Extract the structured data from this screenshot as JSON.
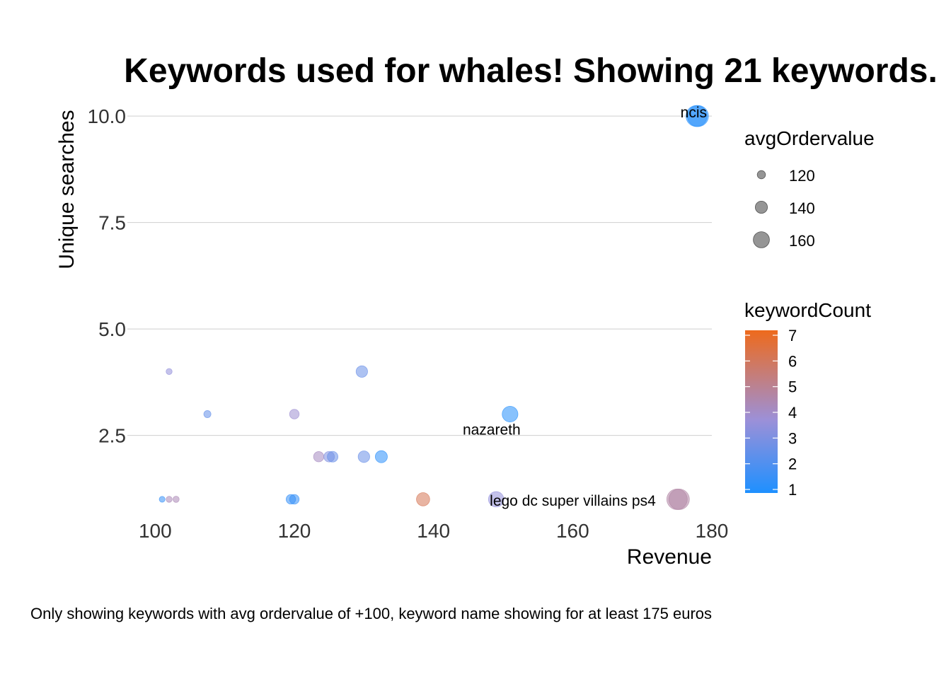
{
  "chart_data": {
    "type": "scatter",
    "title": "Keywords used for whales! Showing 21 keywords.",
    "xlabel": "Revenue",
    "ylabel": "Unique searches",
    "caption": "Only showing keywords with avg ordervalue of +100, keyword name showing for at least 175 euros",
    "xlim": [
      96,
      180
    ],
    "ylim": [
      0.6,
      10.4
    ],
    "x_ticks": [
      100,
      120,
      140,
      160,
      180
    ],
    "y_ticks": [
      2.5,
      5.0,
      7.5,
      10.0
    ],
    "y_tick_labels": [
      "2.5",
      "5.0",
      "7.5",
      "10.0"
    ],
    "grid": "horizontal-major",
    "legend_placement": "right",
    "size_legend": {
      "title": "avgOrdervalue",
      "entries": [
        {
          "label": "120",
          "value": 120
        },
        {
          "label": "140",
          "value": 140
        },
        {
          "label": "160",
          "value": 160
        }
      ]
    },
    "color_legend": {
      "title": "keywordCount",
      "min": 1,
      "max": 7,
      "ticks": [
        "1",
        "2",
        "3",
        "4",
        "5",
        "6",
        "7"
      ],
      "low_color": "#1e90ff",
      "mid_color": "#9c90d8",
      "high_color": "#ee6a1c"
    },
    "points": [
      {
        "x": 101,
        "y": 1,
        "count": 1.5,
        "size": 101
      },
      {
        "x": 102,
        "y": 1,
        "count": 4.3,
        "size": 102
      },
      {
        "x": 103,
        "y": 1,
        "count": 4.3,
        "size": 103
      },
      {
        "x": 102,
        "y": 4,
        "count": 3.5,
        "size": 102
      },
      {
        "x": 107.5,
        "y": 3,
        "count": 2.5,
        "size": 107.5
      },
      {
        "x": 119.5,
        "y": 1,
        "count": 1.5,
        "size": 119.5
      },
      {
        "x": 120,
        "y": 1,
        "count": 1.5,
        "size": 120
      },
      {
        "x": 120,
        "y": 3,
        "count": 3.8,
        "size": 120
      },
      {
        "x": 123.5,
        "y": 2,
        "count": 4.1,
        "size": 123.5
      },
      {
        "x": 125,
        "y": 2,
        "count": 3.1,
        "size": 125
      },
      {
        "x": 125.5,
        "y": 2,
        "count": 2.6,
        "size": 125.5
      },
      {
        "x": 129.7,
        "y": 4,
        "count": 2.6,
        "size": 129.7
      },
      {
        "x": 130,
        "y": 2,
        "count": 2.6,
        "size": 130
      },
      {
        "x": 132.5,
        "y": 2,
        "count": 1.3,
        "size": 132.5
      },
      {
        "x": 138.5,
        "y": 1,
        "count": 6,
        "size": 138.5
      },
      {
        "x": 149,
        "y": 1,
        "count": 3.5,
        "size": 149,
        "label": "lego dc super villains ps4"
      },
      {
        "x": 151,
        "y": 3,
        "count": 1.2,
        "size": 151,
        "label": "nazareth"
      },
      {
        "x": 175,
        "y": 1,
        "count": 4.6,
        "size": 175
      },
      {
        "x": 175.3,
        "y": 1,
        "count": 4.6,
        "size": 175.3
      },
      {
        "x": 178,
        "y": 10,
        "count": 1.2,
        "size": 178,
        "label": "ncis"
      },
      {
        "x": 177.8,
        "y": 10,
        "count": 1.2,
        "size": 177.8
      }
    ]
  }
}
